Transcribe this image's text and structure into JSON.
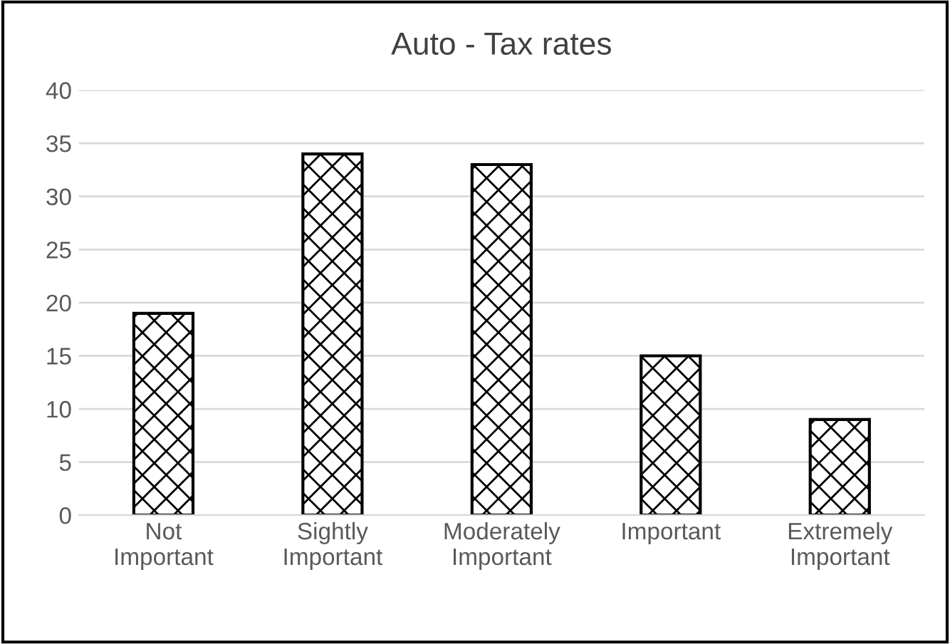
{
  "chart_data": {
    "type": "bar",
    "title": "Auto - Tax rates",
    "categories": [
      "Not\nImportant",
      "Sightly\nImportant",
      "Moderately\nImportant",
      "Important",
      "Extremely\nImportant"
    ],
    "values": [
      19,
      34,
      33,
      15,
      9
    ],
    "color": "#000000",
    "ylim": [
      0,
      40
    ],
    "yticks": [
      0,
      5,
      10,
      15,
      20,
      25,
      30,
      35,
      40
    ],
    "grid": "y"
  }
}
